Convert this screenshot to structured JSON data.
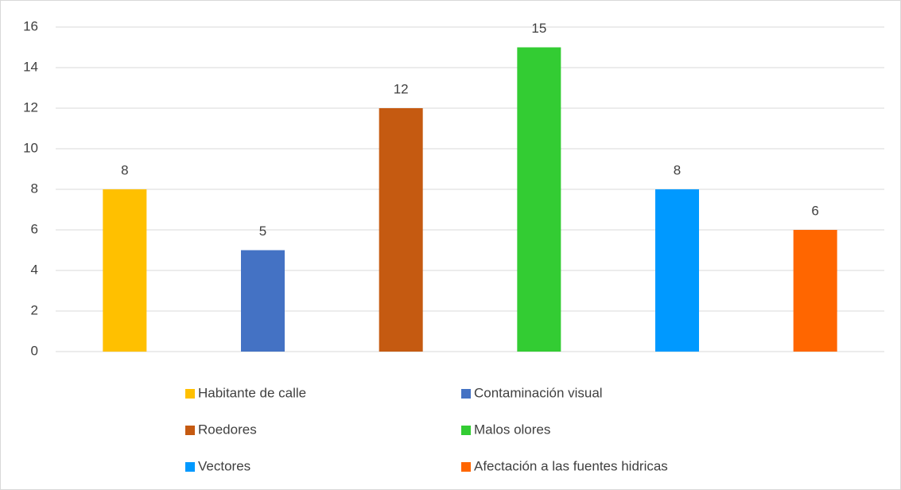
{
  "chart_data": {
    "type": "bar",
    "categories": [
      "Habitante de calle",
      "Contaminación visual",
      "Roedores",
      "Malos olores",
      "Vectores",
      "Afectación a las fuentes hidricas"
    ],
    "values": [
      8,
      5,
      12,
      15,
      8,
      6
    ],
    "colors": [
      "#ffc000",
      "#4472c4",
      "#c55a11",
      "#33cc33",
      "#0099ff",
      "#ff6600"
    ],
    "ylim": [
      0,
      16
    ],
    "yticks": [
      0,
      2,
      4,
      6,
      8,
      10,
      12,
      14,
      16
    ],
    "grid": true,
    "legend": "bottom"
  }
}
